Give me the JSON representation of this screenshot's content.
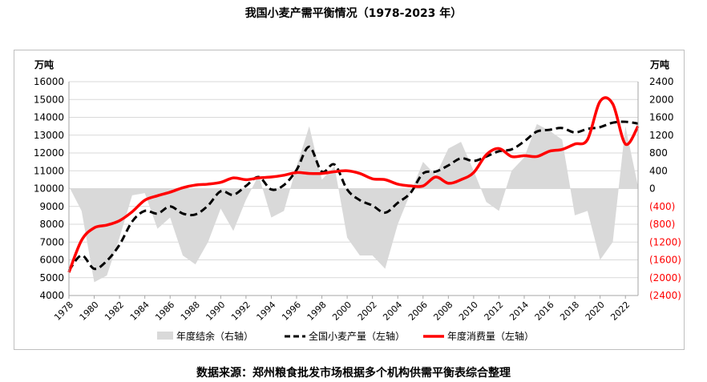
{
  "title": "我国小麦产需平衡情况（1978-2023 年）",
  "source": "数据来源：郑州粮食批发市场根据多个机构供需平衡表综合整理",
  "chart_data": {
    "type": "line",
    "title": "我国小麦产需平衡情况（1978-2023 年）",
    "left_unit": "万吨",
    "right_unit": "万吨",
    "x": [
      1978,
      1979,
      1980,
      1981,
      1982,
      1983,
      1984,
      1985,
      1986,
      1987,
      1988,
      1989,
      1990,
      1991,
      1992,
      1993,
      1994,
      1995,
      1996,
      1997,
      1998,
      1999,
      2000,
      2001,
      2002,
      2003,
      2004,
      2005,
      2006,
      2007,
      2008,
      2009,
      2010,
      2011,
      2012,
      2013,
      2014,
      2015,
      2016,
      2017,
      2018,
      2019,
      2020,
      2021,
      2022,
      2023
    ],
    "x_ticks": [
      "1978",
      "1980",
      "1982",
      "1984",
      "1986",
      "1988",
      "1990",
      "1992",
      "1994",
      "1996",
      "1998",
      "2000",
      "2002",
      "2004",
      "2006",
      "2008",
      "2010",
      "2012",
      "2014",
      "2016",
      "2018",
      "2020",
      "2022"
    ],
    "left_axis": {
      "ylim": [
        4000,
        16000
      ],
      "ticks": [
        "4000",
        "5000",
        "6000",
        "7000",
        "8000",
        "9000",
        "10000",
        "11000",
        "12000",
        "13000",
        "14000",
        "15000",
        "16000"
      ]
    },
    "right_axis": {
      "ylim": [
        -2400,
        2400
      ],
      "ticks": [
        "(2400)",
        "(2000)",
        "(1600)",
        "(1200)",
        "(800)",
        "(400)",
        "0",
        "400",
        "800",
        "1200",
        "1600",
        "2000",
        "2400"
      ],
      "negative_color": "#ff0000"
    },
    "series": [
      {
        "name": "年度结余（右轴）",
        "axis": "right",
        "style": "area",
        "color": "#d9d9d9",
        "values": [
          50,
          -500,
          -2100,
          -1950,
          -1100,
          -150,
          -100,
          -900,
          -650,
          -1500,
          -1700,
          -1200,
          -450,
          -950,
          -250,
          300,
          -650,
          -500,
          500,
          1400,
          200,
          500,
          -1100,
          -1500,
          -1500,
          -1800,
          -800,
          -100,
          600,
          300,
          900,
          1050,
          400,
          -300,
          -500,
          400,
          700,
          1450,
          1300,
          1100,
          -600,
          -500,
          -1600,
          -1200,
          1400,
          50
        ]
      },
      {
        "name": "全国小麦产量（左轴）",
        "axis": "left",
        "style": "dashed",
        "color": "#000000",
        "values": [
          5400,
          6250,
          5500,
          5950,
          6850,
          8150,
          8750,
          8600,
          9000,
          8600,
          8550,
          9050,
          9850,
          9650,
          10150,
          10650,
          9950,
          10200,
          11050,
          12350,
          10950,
          11350,
          9950,
          9350,
          9050,
          8650,
          9200,
          9750,
          10850,
          10950,
          11300,
          11700,
          11550,
          11800,
          12100,
          12200,
          12650,
          13200,
          13300,
          13400,
          13150,
          13350,
          13450,
          13700,
          13750,
          13650
        ]
      },
      {
        "name": "年度消费量（左轴）",
        "axis": "left",
        "style": "solid",
        "color": "#ff0000",
        "values": [
          5300,
          7100,
          7800,
          7950,
          8200,
          8700,
          9350,
          9600,
          9800,
          10050,
          10200,
          10250,
          10350,
          10600,
          10500,
          10600,
          10650,
          10750,
          10900,
          10850,
          10850,
          10950,
          11000,
          10850,
          10550,
          10500,
          10250,
          10150,
          10150,
          10650,
          10300,
          10500,
          10900,
          11900,
          12250,
          11800,
          11850,
          11800,
          12100,
          12200,
          12500,
          12750,
          14900,
          14750,
          12500,
          13500
        ]
      }
    ],
    "legend_position": "bottom",
    "grid": true
  }
}
